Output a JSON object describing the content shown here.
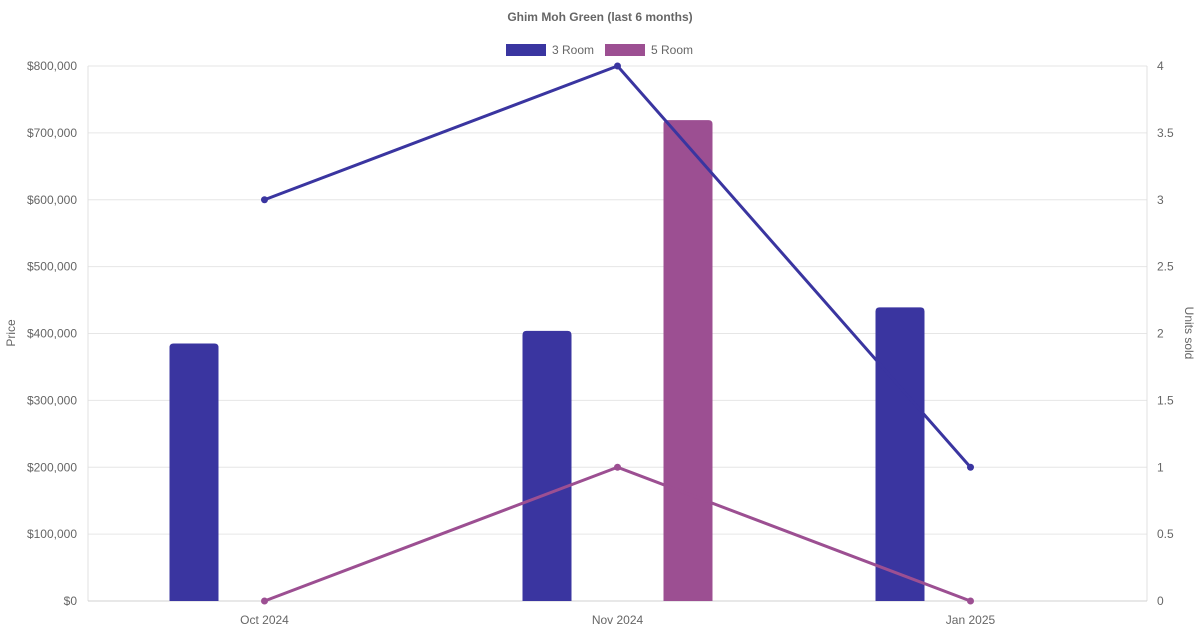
{
  "chart_data": {
    "type": "bar",
    "title": "Ghim Moh Green (last 6 months)",
    "categories": [
      "Oct 2024",
      "Nov 2024",
      "Jan 2025"
    ],
    "y_left": {
      "label": "Price",
      "min": 0,
      "max": 800000,
      "step": 100000,
      "ticks": [
        "$0",
        "$100,000",
        "$200,000",
        "$300,000",
        "$400,000",
        "$500,000",
        "$600,000",
        "$700,000",
        "$800,000"
      ]
    },
    "y_right": {
      "label": "Units sold",
      "min": 0,
      "max": 4,
      "step": 0.5,
      "ticks": [
        "0",
        "0.5",
        "1",
        "1.5",
        "2",
        "2.5",
        "3",
        "3.5",
        "4"
      ]
    },
    "series": [
      {
        "name": "3 Room",
        "color": "#3a35a0",
        "price": [
          385000,
          404000,
          439000
        ],
        "units": [
          3,
          4,
          1
        ]
      },
      {
        "name": "5 Room",
        "color": "#9c4f92",
        "price": [
          null,
          719000,
          null
        ],
        "units": [
          0,
          1,
          0
        ]
      }
    ],
    "legend_position": "top-center",
    "grid": true
  }
}
